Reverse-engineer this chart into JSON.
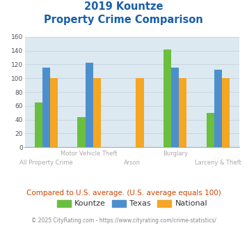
{
  "title_line1": "2019 Kountze",
  "title_line2": "Property Crime Comparison",
  "categories": [
    "All Property Crime",
    "Motor Vehicle Theft",
    "Arson",
    "Burglary",
    "Larceny & Theft"
  ],
  "top_labels": [
    "",
    "Motor Vehicle Theft",
    "",
    "Burglary",
    ""
  ],
  "bottom_labels": [
    "All Property Crime",
    "",
    "Arson",
    "",
    "Larceny & Theft"
  ],
  "series": {
    "Kountze": [
      65,
      44,
      0,
      142,
      50
    ],
    "Texas": [
      115,
      122,
      0,
      115,
      112
    ],
    "National": [
      100,
      100,
      100,
      100,
      100
    ]
  },
  "colors": {
    "Kountze": "#6bbf3e",
    "Texas": "#4d8fcc",
    "National": "#f5a623"
  },
  "ylim": [
    0,
    160
  ],
  "yticks": [
    0,
    20,
    40,
    60,
    80,
    100,
    120,
    140,
    160
  ],
  "grid_color": "#c8d8e0",
  "bg_color": "#dce9f0",
  "title_color": "#1a5fa8",
  "xlabel_top_color": "#aaaaaa",
  "xlabel_bot_color": "#aaaaaa",
  "footnote": "Compared to U.S. average. (U.S. average equals 100)",
  "footnote_color": "#cc4400",
  "credit_left": "© 2025 CityRating.com - ",
  "credit_link": "https://www.cityrating.com/crime-statistics/",
  "credit_color": "#888888",
  "credit_link_color": "#4d8fcc",
  "bar_width": 0.18
}
